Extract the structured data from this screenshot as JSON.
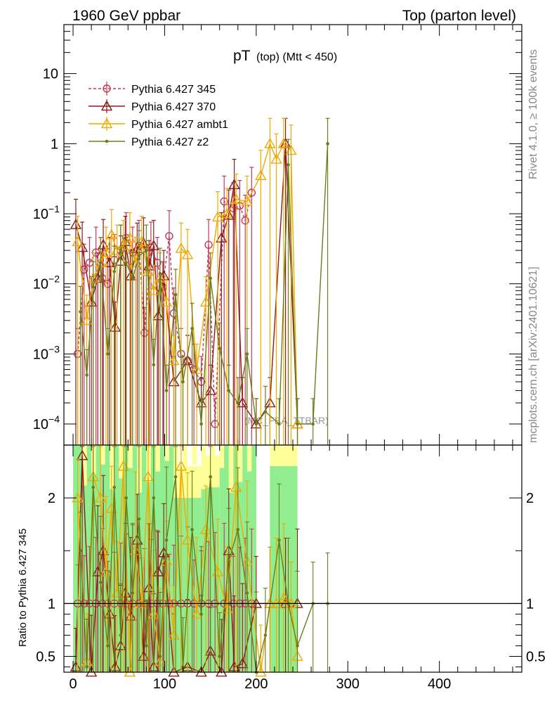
{
  "header": {
    "left": "1960 GeV ppbar",
    "right": "Top (parton level)"
  },
  "side": {
    "rivet": "Rivet 4.1.0, ≥ 100k events",
    "mcplots": "mcplots.cern.ch [arXiv:2401.10621]"
  },
  "chart_data": {
    "type": "line",
    "title_main": "pT",
    "title_sub": "(top) (Mtt < 450)",
    "analysis_watermark": "(MC_FBA_TTBAR)",
    "x_ticks": [
      0,
      100,
      200,
      300,
      400
    ],
    "x_tick_labels": [
      "0",
      "100",
      "200",
      "300",
      "400"
    ],
    "xlim": [
      -10,
      490
    ],
    "top_ylim": [
      5e-05,
      50
    ],
    "top_y_ticks": [
      0.0001,
      0.001,
      0.01,
      0.1,
      1,
      10
    ],
    "top_y_tick_labels": [
      {
        "base": "10",
        "exp": "−4"
      },
      {
        "base": "10",
        "exp": "−3"
      },
      {
        "base": "10",
        "exp": "−2"
      },
      {
        "base": "10",
        "exp": "−1"
      },
      {
        "base": "1",
        "exp": ""
      },
      {
        "base": "10",
        "exp": ""
      }
    ],
    "ratio_ylabel": "Ratio to Pythia 6.427 345",
    "ratio_ylim": [
      0.35,
      2.5
    ],
    "ratio_y_ticks": [
      0.5,
      1,
      2
    ],
    "ratio_y_tick_labels": [
      "0.5",
      "1",
      "2"
    ],
    "series": [
      {
        "name": "Pythia 6.427 345",
        "color": "#c0395a",
        "dash": "4,3",
        "marker": "circle",
        "x": [
          5,
          12,
          18,
          25,
          32,
          38,
          45,
          52,
          58,
          65,
          72,
          78,
          85,
          92,
          98,
          105,
          110,
          118,
          125,
          132,
          140,
          148,
          155,
          165,
          175,
          182,
          188,
          195
        ],
        "y": [
          0.001,
          0.016,
          0.02,
          0.028,
          0.012,
          0.01,
          0.022,
          0.03,
          0.045,
          0.028,
          0.035,
          0.002,
          0.033,
          0.02,
          0.009,
          0.048,
          0.0038,
          0.001,
          0.0008,
          0.0006,
          0.0004,
          0.036,
          0.0001,
          0.15,
          0.12,
          0.13,
          0.08,
          0.2
        ],
        "ratio": [
          1.0,
          1.0,
          1.0,
          1.0,
          1.0,
          1.0,
          1.0,
          1.0,
          1.0,
          1.0,
          1.0,
          1.0,
          1.0,
          1.0,
          1.0,
          1.0,
          1.0,
          1.0,
          1.0,
          1.0,
          1.0,
          1.0,
          1.0,
          1.0,
          1.0,
          1.0,
          1.0,
          1.0
        ]
      },
      {
        "name": "Pythia 6.427 370",
        "color": "#8b1a1a",
        "dash": "",
        "marker": "triangle",
        "x": [
          3,
          10,
          20,
          27,
          33,
          40,
          46,
          52,
          57,
          63,
          70,
          77,
          83,
          88,
          93,
          99,
          110,
          125,
          140,
          150,
          162,
          170,
          176,
          185,
          200,
          215,
          232,
          245
        ],
        "y": [
          0.07,
          0.033,
          0.0055,
          0.012,
          0.036,
          0.02,
          0.0024,
          0.021,
          0.04,
          0.013,
          0.032,
          0.038,
          0.018,
          0.035,
          0.0035,
          0.013,
          0.0004,
          0.0008,
          0.0002,
          0.0003,
          0.045,
          0.095,
          0.26,
          0.0002,
          0.0001,
          0.0002,
          1.0,
          0.0001
        ],
        "ratio": [
          0.4,
          2.4,
          0.35,
          1.3,
          1.5,
          0.9,
          0.4,
          0.6,
          1.1,
          0.88,
          1.6,
          0.5,
          1.15,
          0.4,
          1.3,
          1.48,
          0.35,
          0.4,
          0.35,
          0.55,
          0.35,
          1.5,
          0.4,
          0.43,
          1.0,
          1.0,
          1.0,
          1.0
        ]
      },
      {
        "name": "Pythia 6.427 ambt1",
        "color": "#f0a800",
        "dash": "",
        "marker": "triangle",
        "x": [
          5,
          15,
          22,
          30,
          36,
          42,
          48,
          55,
          62,
          68,
          75,
          82,
          88,
          95,
          102,
          110,
          118,
          125,
          135,
          145,
          158,
          168,
          178,
          190,
          205,
          215,
          222,
          230,
          238,
          245
        ],
        "y": [
          0.04,
          0.003,
          0.012,
          0.02,
          0.028,
          0.05,
          0.03,
          0.035,
          0.045,
          0.02,
          0.04,
          0.015,
          0.008,
          0.012,
          0.0055,
          0.0008,
          0.032,
          0.026,
          0.0006,
          0.0055,
          0.09,
          0.1,
          0.16,
          0.15,
          0.35,
          1.0,
          0.6,
          1.0,
          0.8,
          0.0001
        ],
        "ratio": [
          2.0,
          0.45,
          2.2,
          2.0,
          1.3,
          1.9,
          1.1,
          2.3,
          0.35,
          1.5,
          1.0,
          2.2,
          0.9,
          0.45,
          1.4,
          0.7,
          2.3,
          1.6,
          0.9,
          1.7,
          1.3,
          0.95,
          2.1,
          1.4,
          0.35,
          1.0,
          1.0,
          1.05,
          1.0,
          0.5
        ]
      },
      {
        "name": "Pythia 6.427 z2",
        "color": "#6b7d1a",
        "dash": "",
        "marker": "dot",
        "x": [
          8,
          15,
          22,
          30,
          38,
          45,
          52,
          58,
          65,
          72,
          80,
          88,
          95,
          102,
          112,
          120,
          130,
          140,
          150,
          160,
          170,
          180,
          190,
          200,
          210,
          225,
          235,
          245,
          262,
          278
        ],
        "y": [
          0.004,
          0.0005,
          0.009,
          0.02,
          0.001,
          0.015,
          0.03,
          0.02,
          0.012,
          0.025,
          0.03,
          0.0007,
          0.014,
          0.0003,
          0.007,
          0.0004,
          0.0023,
          0.0001,
          0.012,
          0.0012,
          0.0003,
          0.0002,
          0.001,
          0.0001,
          0.00015,
          0.0001,
          0.5,
          0.0001,
          0.0001,
          1.0
        ],
        "ratio": [
          1.5,
          0.4,
          2.1,
          1.2,
          0.6,
          2.1,
          0.7,
          2.0,
          1.1,
          1.8,
          0.6,
          2.0,
          0.5,
          1.6,
          2.2,
          0.4,
          1.7,
          0.9,
          2.2,
          0.5,
          1.4,
          1.7,
          1.1,
          0.3,
          0.7,
          1.6,
          1.0,
          0.6,
          1.0,
          1.0
        ]
      }
    ],
    "ratio_bands": [
      {
        "x0": 0,
        "x1": 110,
        "lo_yellow": 0.35,
        "hi_yellow": 2.5,
        "lo_green": 0.35,
        "hi_green": 2.5
      },
      {
        "x0": 110,
        "x1": 140,
        "lo_yellow": 0.35,
        "hi_yellow": 2.3,
        "lo_green": 0.35,
        "hi_green": 2.0
      },
      {
        "x0": 140,
        "x1": 160,
        "lo_yellow": 0.35,
        "hi_yellow": 2.4,
        "lo_green": 0.35,
        "hi_green": 2.1
      },
      {
        "x0": 160,
        "x1": 200,
        "lo_yellow": 0.35,
        "hi_yellow": 2.5,
        "lo_green": 0.35,
        "hi_green": 2.5
      },
      {
        "x0": 215,
        "x1": 245,
        "lo_yellow": 0.35,
        "hi_yellow": 2.5,
        "lo_green": 0.35,
        "hi_green": 2.3
      }
    ]
  }
}
